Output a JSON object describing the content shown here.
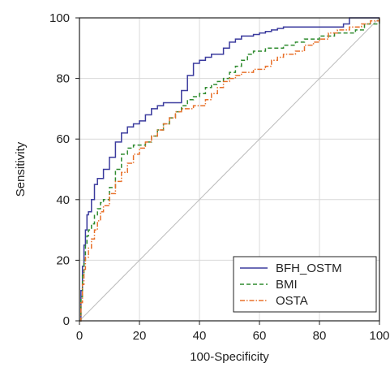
{
  "chart_data": {
    "type": "line",
    "title": "",
    "xlabel": "100-Specificity",
    "ylabel": "Sensitivity",
    "xlim": [
      0,
      100
    ],
    "ylim": [
      0,
      100
    ],
    "xticks": [
      "0",
      "20",
      "40",
      "60",
      "80",
      "100"
    ],
    "yticks": [
      "0",
      "20",
      "40",
      "60",
      "80",
      "100"
    ],
    "grid": true,
    "legend_position": "bottom-right",
    "reference_line": {
      "from": [
        0,
        0
      ],
      "to": [
        100,
        100
      ],
      "color": "#bbbbbb"
    },
    "series": [
      {
        "name": "BFH_OSTM",
        "color": "#3b3b9e",
        "style": "solid",
        "x": [
          0,
          0.5,
          1,
          1.5,
          2,
          2.5,
          3,
          4,
          5,
          6,
          8,
          10,
          12,
          14,
          16,
          18,
          20,
          22,
          24,
          26,
          28,
          30,
          32,
          34,
          36,
          38,
          40,
          42,
          44,
          46,
          48,
          50,
          52,
          54,
          56,
          58,
          60,
          62,
          64,
          66,
          68,
          70,
          75,
          80,
          85,
          88,
          90,
          92,
          100
        ],
        "y": [
          0,
          10,
          18,
          25,
          30,
          35,
          36,
          40,
          45,
          47,
          50,
          54,
          59,
          62,
          64,
          65,
          66,
          68,
          70,
          71,
          72,
          72,
          72,
          76,
          81,
          85,
          86,
          87,
          88,
          88,
          90,
          92,
          93,
          94,
          94,
          94.5,
          95,
          95.5,
          96,
          96.5,
          97,
          97,
          97,
          97,
          97,
          98,
          100,
          100,
          100
        ]
      },
      {
        "name": "BMI",
        "color": "#2e8b2e",
        "style": "dashed",
        "x": [
          0,
          0.5,
          1,
          1.5,
          2,
          2.5,
          3,
          4,
          5,
          6,
          7,
          8,
          10,
          12,
          14,
          16,
          18,
          20,
          22,
          24,
          26,
          28,
          30,
          32,
          34,
          36,
          38,
          40,
          42,
          44,
          46,
          48,
          50,
          52,
          54,
          56,
          58,
          60,
          62,
          64,
          66,
          68,
          70,
          72,
          75,
          80,
          85,
          88,
          90,
          92,
          95,
          100
        ],
        "y": [
          0,
          8,
          15,
          20,
          25,
          28,
          30,
          32,
          35,
          37,
          39,
          40,
          44,
          50,
          55,
          57,
          58,
          58,
          59,
          61,
          63,
          65,
          67,
          69,
          71,
          73,
          74,
          75,
          77,
          78,
          79,
          80,
          82,
          84,
          86,
          88,
          89,
          89,
          90,
          90,
          90,
          91,
          91,
          92,
          93,
          94,
          95,
          95,
          95,
          96,
          98,
          100
        ]
      },
      {
        "name": "OSTA",
        "color": "#e8702a",
        "style": "dashdot",
        "x": [
          0,
          0.5,
          1,
          1.5,
          2,
          3,
          4,
          5,
          6,
          7,
          8,
          10,
          12,
          14,
          16,
          18,
          20,
          22,
          24,
          26,
          28,
          30,
          32,
          34,
          36,
          38,
          40,
          42,
          44,
          46,
          48,
          50,
          52,
          54,
          56,
          58,
          60,
          62,
          64,
          66,
          68,
          70,
          72,
          75,
          78,
          80,
          83,
          86,
          90,
          94,
          97,
          100
        ],
        "y": [
          0,
          6,
          12,
          17,
          21,
          24,
          27,
          30,
          33,
          36,
          38,
          42,
          46,
          49,
          52,
          55,
          57,
          59,
          61,
          63,
          65,
          67,
          69,
          70,
          70,
          71,
          71,
          73,
          75,
          77,
          79,
          80,
          81,
          82,
          82,
          83,
          83,
          84,
          86,
          87,
          88,
          88,
          89,
          91,
          92,
          93,
          95,
          96,
          97,
          98,
          99,
          100
        ]
      }
    ]
  }
}
